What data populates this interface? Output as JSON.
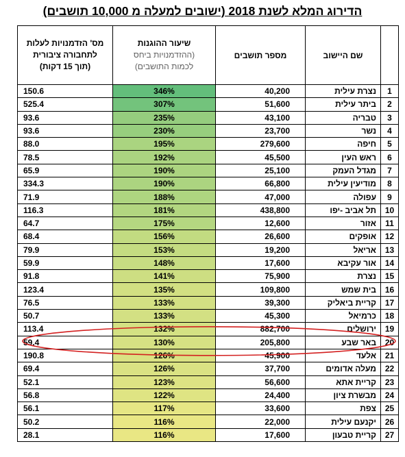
{
  "title": "הדירוג המלא לשנת 2018 (ישובים למעלה מ 10,000 תושבים)",
  "headers": {
    "name": "שם היישוב",
    "population": "מספר תושבים",
    "rate_line1": "שיעור ההוגנות",
    "rate_line2": "(ההזדמנויות ביחס",
    "rate_line3": "לכמות התושבים)",
    "access_line1": "מס' הזדמנויות לעלות",
    "access_line2": "לתחבורה ציבורית",
    "access_line3": "(תוך 15 דקות)"
  },
  "rows": [
    {
      "rank": "1",
      "name": "נצרת עילית",
      "population": "40,200",
      "rate": "346%",
      "access": "150.6"
    },
    {
      "rank": "2",
      "name": "ביתר עילית",
      "population": "51,600",
      "rate": "307%",
      "access": "525.4"
    },
    {
      "rank": "3",
      "name": "טבריה",
      "population": "43,100",
      "rate": "235%",
      "access": "93.6"
    },
    {
      "rank": "4",
      "name": "נשר",
      "population": "23,700",
      "rate": "230%",
      "access": "93.6"
    },
    {
      "rank": "5",
      "name": "חיפה",
      "population": "279,600",
      "rate": "195%",
      "access": "88.0"
    },
    {
      "rank": "6",
      "name": "ראש העין",
      "population": "45,500",
      "rate": "192%",
      "access": "78.5"
    },
    {
      "rank": "7",
      "name": "מגדל העמק",
      "population": "25,100",
      "rate": "190%",
      "access": "65.9"
    },
    {
      "rank": "8",
      "name": "מודיעין עילית",
      "population": "66,800",
      "rate": "190%",
      "access": "334.3"
    },
    {
      "rank": "9",
      "name": "עפולה",
      "population": "47,000",
      "rate": "188%",
      "access": "71.9"
    },
    {
      "rank": "10",
      "name": "תל אביב -יפו",
      "population": "438,800",
      "rate": "181%",
      "access": "116.3"
    },
    {
      "rank": "11",
      "name": "אזור",
      "population": "12,600",
      "rate": "175%",
      "access": "64.7"
    },
    {
      "rank": "12",
      "name": "אופקים",
      "population": "26,600",
      "rate": "156%",
      "access": "68.4"
    },
    {
      "rank": "13",
      "name": "אריאל",
      "population": "19,200",
      "rate": "153%",
      "access": "79.9"
    },
    {
      "rank": "14",
      "name": "אור עקיבא",
      "population": "17,600",
      "rate": "148%",
      "access": "59.9"
    },
    {
      "rank": "15",
      "name": "נצרת",
      "population": "75,900",
      "rate": "141%",
      "access": "91.8"
    },
    {
      "rank": "16",
      "name": "בית שמש",
      "population": "109,800",
      "rate": "135%",
      "access": "123.4"
    },
    {
      "rank": "17",
      "name": "קריית ביאליק",
      "population": "39,300",
      "rate": "133%",
      "access": "76.5"
    },
    {
      "rank": "18",
      "name": "כרמיאל",
      "population": "45,300",
      "rate": "133%",
      "access": "50.7"
    },
    {
      "rank": "19",
      "name": "ירושלים",
      "population": "882,700",
      "rate": "132%",
      "access": "113.4"
    },
    {
      "rank": "20",
      "name": "באר שבע",
      "population": "205,800",
      "rate": "130%",
      "access": "59.4"
    },
    {
      "rank": "21",
      "name": "אלעד",
      "population": "45,900",
      "rate": "126%",
      "access": "190.8"
    },
    {
      "rank": "22",
      "name": "מעלה אדומים",
      "population": "37,700",
      "rate": "126%",
      "access": "69.4"
    },
    {
      "rank": "23",
      "name": "קריית אתא",
      "population": "56,600",
      "rate": "123%",
      "access": "52.1"
    },
    {
      "rank": "24",
      "name": "מבשרת ציון",
      "population": "24,400",
      "rate": "122%",
      "access": "56.8"
    },
    {
      "rank": "25",
      "name": "צפת",
      "population": "33,600",
      "rate": "117%",
      "access": "56.1"
    },
    {
      "rank": "26",
      "name": "יקנעם עילית",
      "population": "22,000",
      "rate": "116%",
      "access": "50.2"
    },
    {
      "rank": "27",
      "name": "קריית טבעון",
      "population": "17,600",
      "rate": "116%",
      "access": "28.1"
    }
  ],
  "colors": {
    "scale_high": "#63be7b",
    "scale_low": "#e9e784",
    "highlight_ellipse": "#d32020"
  },
  "highlighted_rank": "20"
}
